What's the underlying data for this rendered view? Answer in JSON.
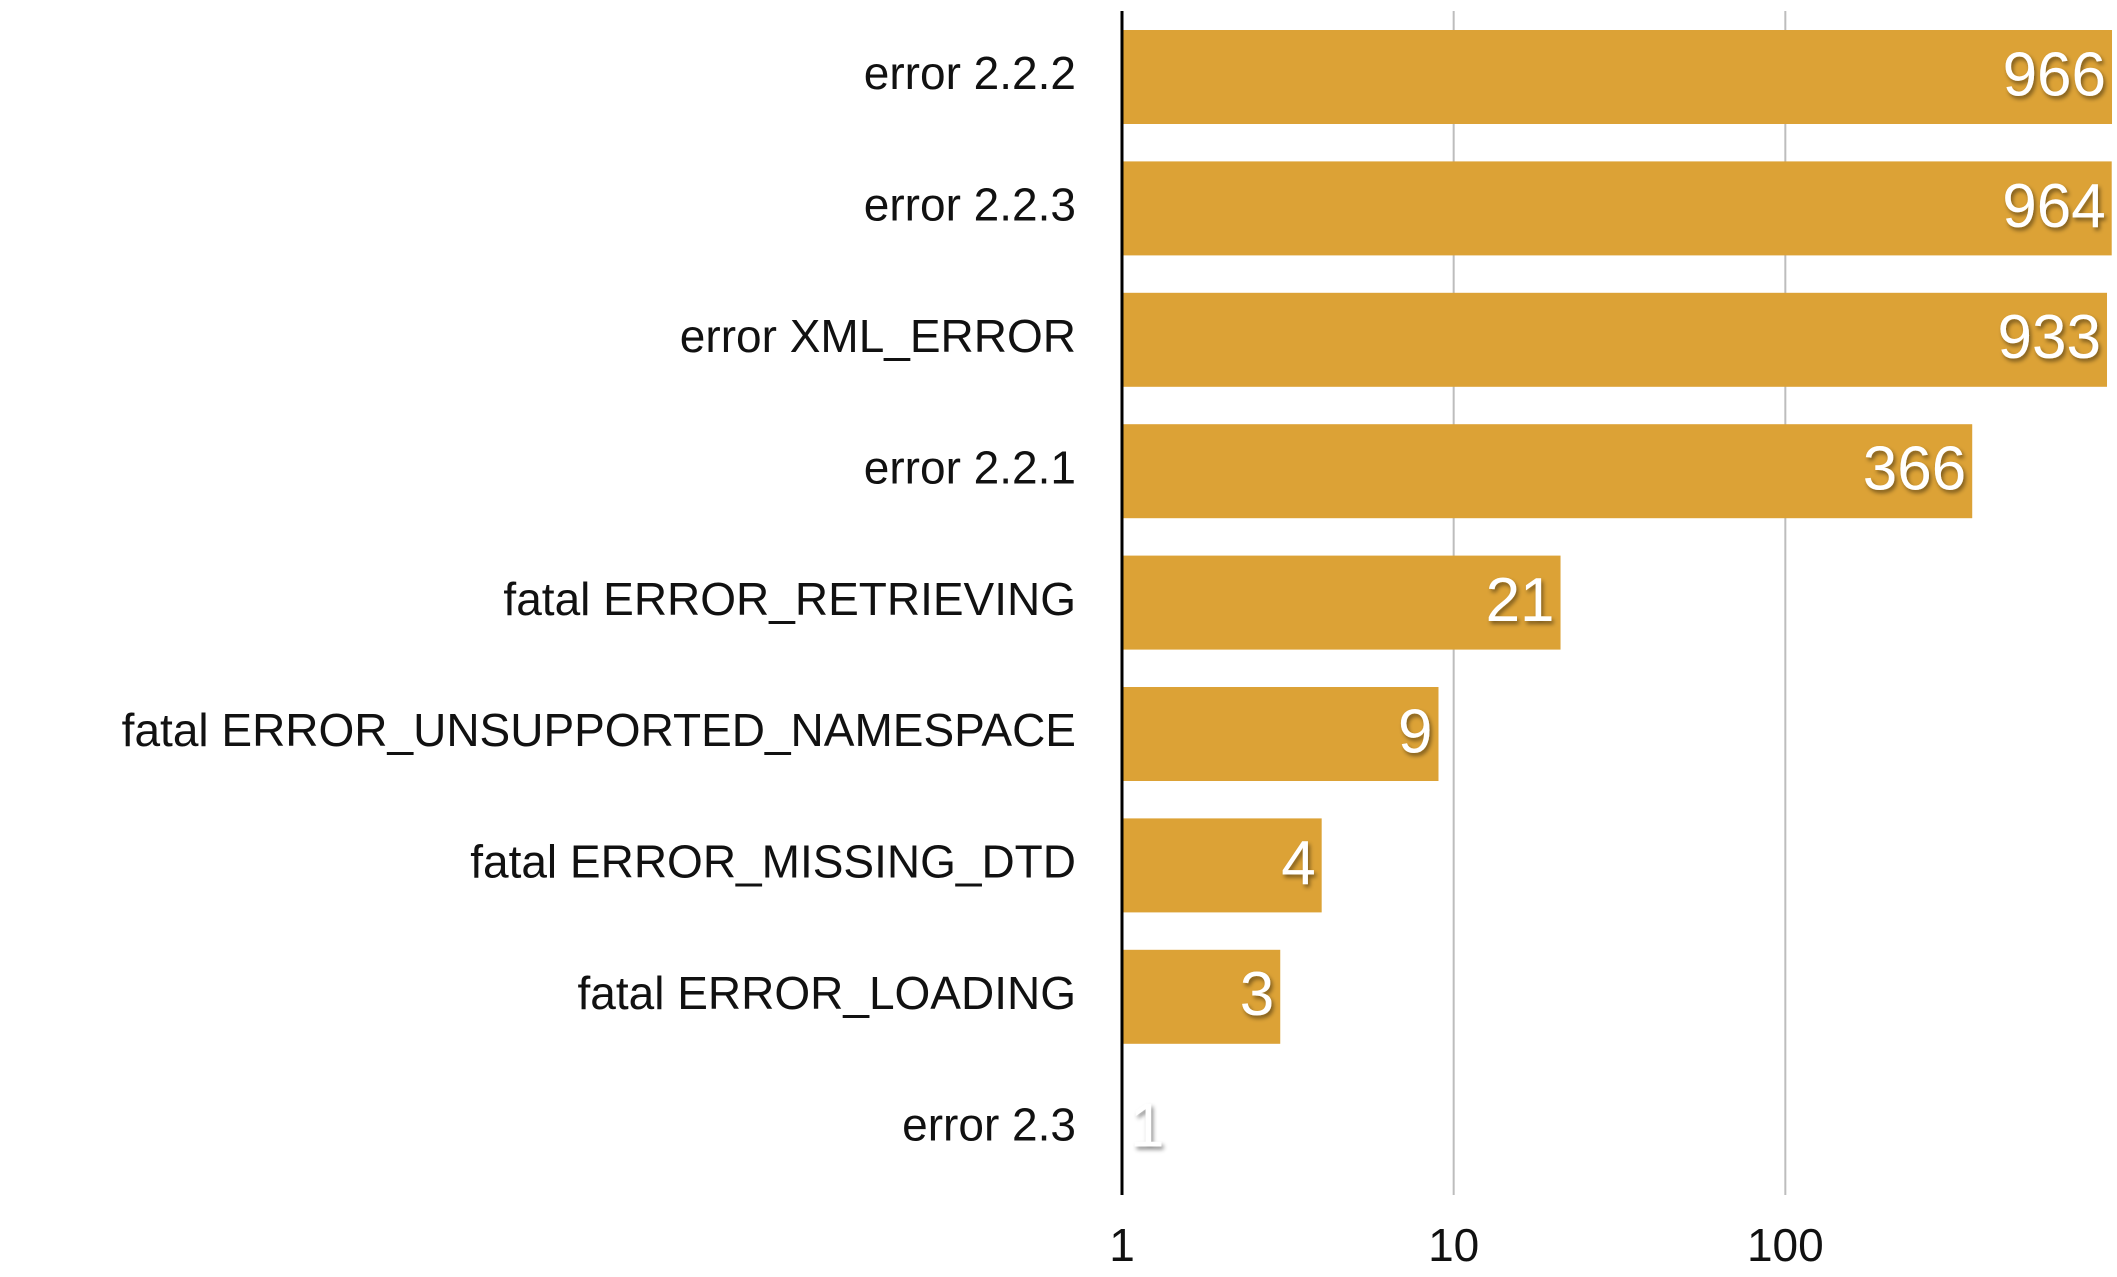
{
  "chart_data": {
    "type": "bar",
    "orientation": "horizontal",
    "categories": [
      "error 2.2.2",
      "error 2.2.3",
      "error XML_ERROR",
      "error 2.2.1",
      "fatal ERROR_RETRIEVING",
      "fatal ERROR_UNSUPPORTED_NAMESPACE",
      "fatal ERROR_MISSING_DTD",
      "fatal ERROR_LOADING",
      "error 2.3"
    ],
    "values": [
      966,
      964,
      933,
      366,
      21,
      9,
      4,
      3,
      1
    ],
    "color": "#dca236",
    "xlim": [
      1,
      1000
    ],
    "xticks": [
      1,
      10,
      100
    ],
    "log_scale": true,
    "grid": true
  }
}
